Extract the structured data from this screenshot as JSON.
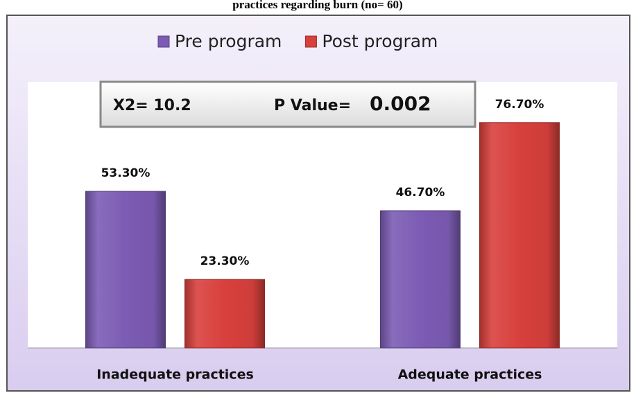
{
  "chart_data": {
    "type": "bar",
    "title": "practices regarding burn (no= 60)",
    "annotations": [
      "X2=  10.2",
      "P Value=",
      "0.002"
    ],
    "categories": [
      "Inadequate practices",
      "Adequate practices"
    ],
    "series": [
      {
        "name": "Pre program",
        "color": "#7c5cb4",
        "values": [
          53.3,
          46.7
        ],
        "value_labels": [
          "53.30%",
          "46.70%"
        ]
      },
      {
        "name": "Post program",
        "color": "#d8403c",
        "values": [
          23.3,
          76.7
        ],
        "value_labels": [
          "23.30%",
          "76.70%"
        ]
      }
    ],
    "ylim": [
      0,
      100
    ],
    "legend": "top"
  }
}
